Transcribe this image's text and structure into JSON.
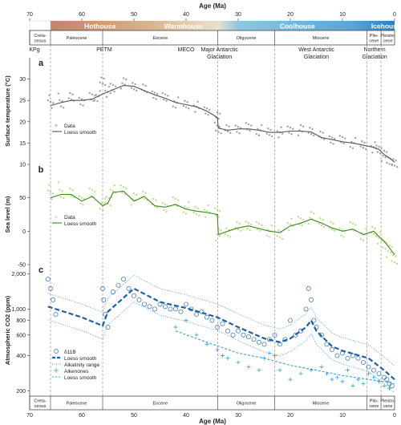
{
  "chart_data": [
    {
      "type": "line",
      "panel_label": "a",
      "ylabel": "Surface temperature (°C)",
      "xlabel": "Age (Ma)",
      "xlim": [
        70,
        0
      ],
      "ylim": [
        10,
        35
      ],
      "yticks": [
        10,
        15,
        20,
        25,
        30
      ],
      "xticks": [
        70,
        60,
        50,
        40,
        30,
        20,
        10,
        0
      ],
      "legend_position": "left",
      "series": [
        {
          "name": "Data",
          "color": "#888888",
          "x": [
            66,
            64,
            62,
            60,
            58,
            57,
            56,
            55,
            54,
            52,
            50,
            48,
            46,
            44,
            42,
            40,
            38,
            36,
            34,
            33.8,
            32,
            30,
            28,
            26,
            24,
            22,
            20,
            18,
            16,
            14,
            12,
            10,
            8,
            6,
            4,
            3,
            2,
            1,
            0
          ],
          "y": [
            23.5,
            24.5,
            25.5,
            25.0,
            25.5,
            26.0,
            29.5,
            27.0,
            28.0,
            29.0,
            28.5,
            27.5,
            26.5,
            25.5,
            24.5,
            24.0,
            23.5,
            22.5,
            21.0,
            18.5,
            18.0,
            18.5,
            18.5,
            18.0,
            17.5,
            17.5,
            18.0,
            18.0,
            18.0,
            16.5,
            16.0,
            15.5,
            15.0,
            14.5,
            14.0,
            13.5,
            12.0,
            11.0,
            10.0
          ]
        },
        {
          "name": "Loess smooth",
          "color": "#555555",
          "x": [
            66,
            64,
            62,
            60,
            58,
            56,
            54,
            52,
            50,
            48,
            46,
            44,
            42,
            40,
            38,
            36,
            34,
            33.8,
            32,
            30,
            28,
            26,
            24,
            22,
            20,
            18,
            16,
            14,
            12,
            10,
            8,
            6,
            4,
            3,
            2,
            1,
            0
          ],
          "y": [
            23.8,
            24.5,
            25.0,
            25.0,
            25.3,
            26.5,
            27.5,
            28.5,
            28.3,
            27.3,
            26.3,
            25.5,
            24.5,
            24.0,
            23.5,
            22.5,
            21.0,
            18.5,
            18.0,
            18.3,
            18.3,
            18.0,
            17.5,
            17.5,
            17.8,
            17.8,
            17.6,
            16.3,
            15.8,
            15.3,
            15.0,
            14.5,
            14.0,
            13.5,
            12.3,
            11.5,
            10.5
          ]
        }
      ]
    },
    {
      "type": "line",
      "panel_label": "b",
      "ylabel": "Sea level (m)",
      "xlim": [
        70,
        0
      ],
      "ylim": [
        -50,
        100
      ],
      "yticks": [
        -50,
        0,
        50
      ],
      "legend_position": "left",
      "series": [
        {
          "name": "Data",
          "color": "#a6d96a",
          "x": [
            66,
            64,
            62,
            60,
            58,
            56,
            55,
            54,
            52,
            50,
            48,
            46,
            44,
            42,
            40,
            38,
            36,
            34,
            33.8,
            32,
            30,
            28,
            26,
            24,
            22,
            20,
            18,
            16,
            14,
            12,
            10,
            8,
            6,
            4,
            3,
            2,
            1,
            0
          ],
          "y": [
            50,
            58,
            55,
            48,
            55,
            40,
            45,
            60,
            62,
            48,
            55,
            40,
            38,
            42,
            35,
            30,
            30,
            28,
            -5,
            0,
            5,
            10,
            5,
            0,
            -5,
            10,
            15,
            20,
            15,
            5,
            0,
            5,
            -5,
            0,
            -10,
            -20,
            -30,
            -40
          ]
        },
        {
          "name": "Loess smooth",
          "color": "#3a8a1a",
          "x": [
            66,
            64,
            62,
            60,
            58,
            56,
            55,
            54,
            52,
            50,
            48,
            46,
            44,
            42,
            40,
            38,
            36,
            34,
            33.8,
            32,
            30,
            28,
            26,
            24,
            22,
            20,
            18,
            16,
            14,
            12,
            10,
            8,
            6,
            4,
            3,
            2,
            1,
            0
          ],
          "y": [
            50,
            55,
            55,
            45,
            52,
            38,
            42,
            58,
            60,
            45,
            52,
            38,
            36,
            40,
            33,
            30,
            28,
            25,
            -5,
            0,
            5,
            8,
            4,
            0,
            -2,
            8,
            12,
            18,
            12,
            5,
            0,
            3,
            -5,
            0,
            -8,
            -15,
            -25,
            -35
          ]
        }
      ]
    },
    {
      "type": "scatter",
      "panel_label": "c",
      "ylabel": "Atmospheric CO2 (ppm)",
      "xlabel": "Age (Ma)",
      "xlim": [
        70,
        0
      ],
      "ylim": [
        180,
        2400
      ],
      "log_y": true,
      "yticks": [
        200,
        400,
        600,
        800,
        1000,
        2000
      ],
      "ytick_labels": [
        "200",
        "400",
        "600",
        "800",
        "1,000",
        "2,000"
      ],
      "xticks": [
        70,
        60,
        50,
        40,
        30,
        20,
        10,
        0
      ],
      "legend_position": "bottom-left",
      "series": [
        {
          "name": "δ11B",
          "color": "#2a6ebb",
          "marker": "circle",
          "x": [
            66.5,
            66,
            65.5,
            65,
            56,
            55.8,
            55.5,
            55,
            54,
            53,
            52,
            51,
            50,
            49,
            48,
            47,
            46,
            45,
            44,
            43,
            42,
            41,
            40,
            39,
            38,
            37,
            36,
            35,
            34,
            33,
            32,
            31,
            30,
            29,
            28,
            27,
            26,
            25,
            24,
            23,
            22,
            21,
            20,
            19,
            18,
            17,
            16.5,
            16,
            15.5,
            15,
            14,
            13,
            12,
            11,
            10,
            9,
            8,
            7,
            6,
            5,
            4,
            3,
            2,
            1.5,
            1,
            0.5
          ],
          "y": [
            1800,
            1500,
            1200,
            900,
            1500,
            1200,
            900,
            700,
            1400,
            1600,
            1800,
            1500,
            1300,
            1200,
            1100,
            1050,
            1000,
            1100,
            1050,
            1000,
            1000,
            950,
            1100,
            1000,
            900,
            950,
            850,
            800,
            700,
            750,
            650,
            600,
            650,
            600,
            580,
            550,
            520,
            500,
            550,
            600,
            500,
            550,
            800,
            600,
            650,
            1000,
            1500,
            1200,
            800,
            700,
            600,
            500,
            450,
            400,
            420,
            380,
            400,
            380,
            350,
            320,
            300,
            280,
            260,
            250,
            230,
            220
          ]
        },
        {
          "name": "Loess smooth",
          "color": "#1f5fa8",
          "style": "thick-dashed",
          "x": [
            66.5,
            60,
            56,
            55,
            50,
            45,
            40,
            34,
            30,
            25,
            22,
            20,
            17,
            16,
            15,
            12,
            10,
            5,
            2,
            0
          ],
          "y": [
            1050,
            850,
            720,
            950,
            1500,
            1150,
            1020,
            850,
            700,
            560,
            520,
            560,
            700,
            800,
            650,
            480,
            440,
            380,
            300,
            250
          ]
        },
        {
          "name": "Alkalinity range",
          "color": "#4a9ad4",
          "style": "dotted-band"
        },
        {
          "name": "Alkenones",
          "color": "#3a9ee0",
          "marker": "plus",
          "x": [
            42,
            40,
            38,
            36,
            34,
            33,
            32,
            30,
            28,
            26,
            25,
            24,
            23,
            22,
            20,
            18,
            16,
            14,
            13,
            12,
            11,
            10,
            9,
            8,
            7,
            6,
            5,
            4,
            3,
            2,
            1
          ],
          "y": [
            700,
            800,
            600,
            500,
            450,
            400,
            380,
            350,
            320,
            300,
            380,
            420,
            400,
            300,
            250,
            280,
            300,
            320,
            280,
            250,
            260,
            240,
            300,
            220,
            250,
            230,
            280,
            260,
            240,
            220,
            210
          ]
        },
        {
          "name": "Loess smooth",
          "color": "#3a9ee0",
          "style": "thin-dashed",
          "x": [
            42,
            36,
            30,
            25,
            20,
            15,
            10,
            5,
            2,
            0
          ],
          "y": [
            650,
            520,
            420,
            380,
            330,
            300,
            270,
            250,
            240,
            230
          ]
        }
      ]
    }
  ],
  "age_axis": {
    "title": "Age (Ma)",
    "ticks": [
      70,
      60,
      50,
      40,
      30,
      20,
      10,
      0
    ]
  },
  "climate_states": [
    {
      "label": "Hothouse",
      "from": 66,
      "to": 47
    },
    {
      "label": "Warmhouse",
      "from": 47,
      "to": 34
    },
    {
      "label": "Coolhouse",
      "from": 34,
      "to": 3.3
    },
    {
      "label": "Icehouse",
      "from": 3.3,
      "to": 0
    }
  ],
  "climate_bar_colors": {
    "hot": "#c0846a",
    "warm": "#d9b48a",
    "cool": "#8ec8e0",
    "ice": "#2f7fbf"
  },
  "epochs": [
    {
      "label_lines": [
        "Creta-",
        "ceous"
      ],
      "from": 70,
      "to": 66
    },
    {
      "label_lines": [
        "Paleocene"
      ],
      "from": 66,
      "to": 56
    },
    {
      "label_lines": [
        "Eocene"
      ],
      "from": 56,
      "to": 33.9
    },
    {
      "label_lines": [
        "Oligocene"
      ],
      "from": 33.9,
      "to": 23
    },
    {
      "label_lines": [
        "Miocene"
      ],
      "from": 23,
      "to": 5.3
    },
    {
      "label_lines": [
        "Plio-",
        "cene"
      ],
      "from": 5.3,
      "to": 2.6
    },
    {
      "label_lines": [
        "Pleisto-",
        "cene"
      ],
      "from": 2.6,
      "to": 0
    }
  ],
  "events": [
    {
      "label_lines": [
        "KPg"
      ],
      "age": 66
    },
    {
      "label_lines": [
        "PETM"
      ],
      "age": 56
    },
    {
      "label_lines": [
        "MECO"
      ],
      "age": 40
    },
    {
      "label_lines": [
        "Major Antarctic",
        "Glaciation"
      ],
      "age": 33.9
    },
    {
      "label_lines": [
        "West Antarctic",
        "Glaciation"
      ],
      "age": 15
    },
    {
      "label_lines": [
        "Northern",
        "Glaciation"
      ],
      "age": 2.6
    }
  ],
  "event_line_ages": [
    66,
    56,
    33.9,
    23,
    5.3,
    2.6
  ]
}
